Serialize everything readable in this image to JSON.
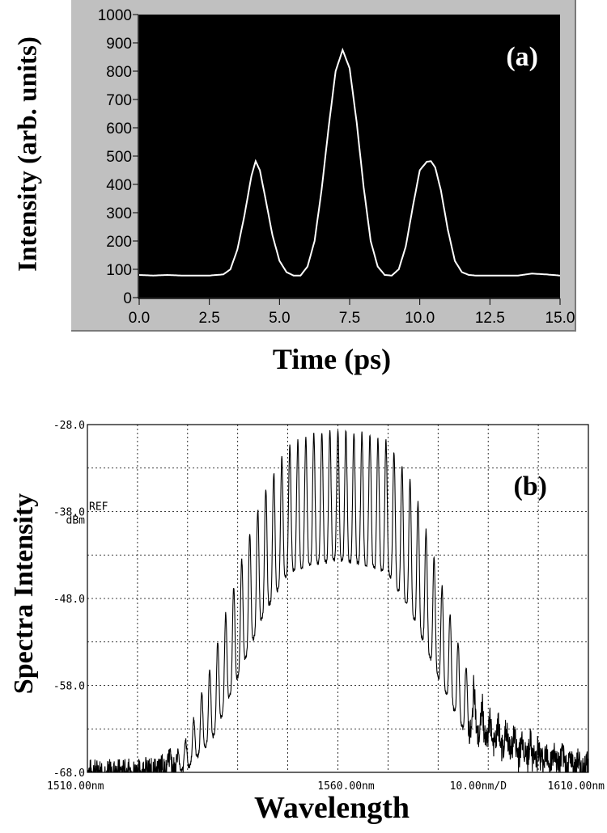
{
  "chart_data": [
    {
      "type": "line",
      "panel": "(a)",
      "xlabel": "Time (ps)",
      "ylabel": "Intensity (arb. units)",
      "xlim": [
        0,
        15
      ],
      "ylim": [
        0,
        1000
      ],
      "xticks": [
        "0.0",
        "2.5",
        "5.0",
        "7.5",
        "10.0",
        "12.5",
        "15.0"
      ],
      "yticks": [
        "0",
        "100",
        "200",
        "300",
        "400",
        "500",
        "600",
        "700",
        "800",
        "900",
        "1000"
      ],
      "grid": false,
      "background": "#000000",
      "line_color": "#ffffff",
      "peaks": [
        {
          "x": 4.15,
          "y": 482
        },
        {
          "x": 7.25,
          "y": 875
        },
        {
          "x": 10.4,
          "y": 482
        }
      ],
      "baseline": 78,
      "series": [
        {
          "x": [
            0.0,
            0.5,
            1.0,
            1.5,
            2.0,
            2.5,
            3.0,
            3.25,
            3.5,
            3.75,
            4.0,
            4.15,
            4.3,
            4.5,
            4.75,
            5.0,
            5.25,
            5.5,
            5.75,
            6.0,
            6.25,
            6.5,
            6.75,
            7.0,
            7.25,
            7.5,
            7.75,
            8.0,
            8.25,
            8.5,
            8.75,
            9.0,
            9.25,
            9.5,
            9.75,
            10.0,
            10.25,
            10.4,
            10.55,
            10.75,
            11.0,
            11.25,
            11.5,
            11.75,
            12.0,
            12.5,
            13.0,
            13.5,
            14.0,
            14.5,
            15.0
          ],
          "y": [
            80,
            78,
            80,
            78,
            78,
            78,
            82,
            100,
            170,
            290,
            430,
            482,
            450,
            350,
            220,
            130,
            90,
            78,
            78,
            110,
            200,
            380,
            600,
            800,
            875,
            810,
            620,
            390,
            200,
            110,
            80,
            78,
            100,
            180,
            320,
            450,
            480,
            482,
            460,
            380,
            240,
            130,
            90,
            80,
            78,
            78,
            78,
            78,
            85,
            82,
            78
          ]
        }
      ]
    },
    {
      "type": "line",
      "panel": "(b)",
      "xlabel": "Wavelength",
      "ylabel": "Spectra Intensity",
      "xlim": [
        1510,
        1610
      ],
      "ylim": [
        -68,
        -28
      ],
      "xtick_labels": [
        "1510.00nm",
        "1560.00nm",
        "10.00nm/D",
        "1610.00nm"
      ],
      "ytick_labels": [
        "-28.0",
        "-38.0",
        "-48.0",
        "-58.0",
        "-68.0"
      ],
      "ref_marker": "REF",
      "unit_label": "dBm",
      "grid": true,
      "background": "#ffffff",
      "line_color": "#000000",
      "comb_spacing_nm": 1.6,
      "envelope": {
        "x": [
          1510,
          1520,
          1525,
          1530,
          1535,
          1540,
          1545,
          1550,
          1555,
          1560,
          1565,
          1570,
          1575,
          1580,
          1585,
          1590,
          1595,
          1600,
          1605,
          1610
        ],
        "peak_y": [
          -68,
          -68,
          -67,
          -64,
          -55,
          -45,
          -36,
          -30.5,
          -29,
          -28.5,
          -29,
          -30,
          -35,
          -45,
          -55,
          -62,
          -63.5,
          -65,
          -66,
          -67
        ],
        "floor_y": [
          -68,
          -68,
          -68,
          -67.5,
          -64,
          -57,
          -50,
          -45,
          -44,
          -43.5,
          -44,
          -45,
          -50,
          -57,
          -63,
          -64.5,
          -65.5,
          -66.5,
          -67,
          -68
        ]
      }
    }
  ]
}
